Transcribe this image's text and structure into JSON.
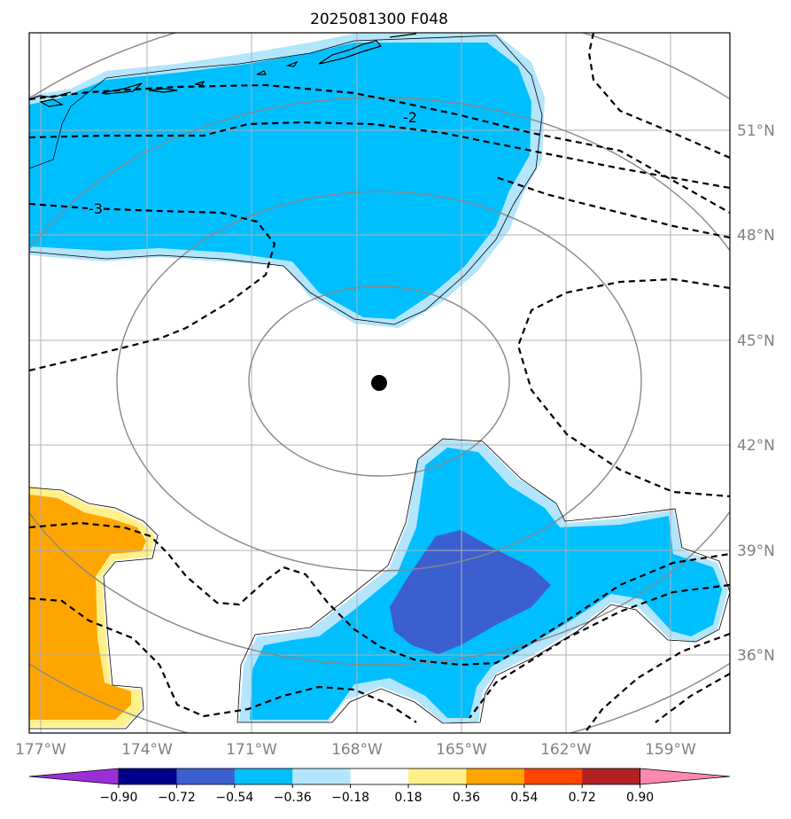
{
  "title": "2025081300 F048",
  "map": {
    "lon_labels": [
      "177°W",
      "174°W",
      "171°W",
      "168°W",
      "165°W",
      "162°W",
      "159°W"
    ],
    "lat_labels": [
      "51°N",
      "48°N",
      "45°N",
      "42°N",
      "39°N",
      "36°N"
    ],
    "contour_labels": [
      "-2",
      "-3"
    ],
    "center_marker": "storm-center",
    "colors": {
      "light_blue": "#b3e5fc",
      "cyan": "#00bfff",
      "medium_blue": "#3b5fcf",
      "light_yellow": "#fff08a",
      "orange": "#ffa500"
    }
  },
  "colorbar": {
    "ticks": [
      "−0.90",
      "−0.72",
      "−0.54",
      "−0.36",
      "−0.18",
      "0.18",
      "0.36",
      "0.54",
      "0.72",
      "0.90"
    ],
    "colors": [
      "#9b30d9",
      "#00008b",
      "#3b5fcf",
      "#00bfff",
      "#b3e5fc",
      "#ffffff",
      "#fff08a",
      "#ffa500",
      "#ff4500",
      "#b22222",
      "#ff88b0"
    ]
  }
}
